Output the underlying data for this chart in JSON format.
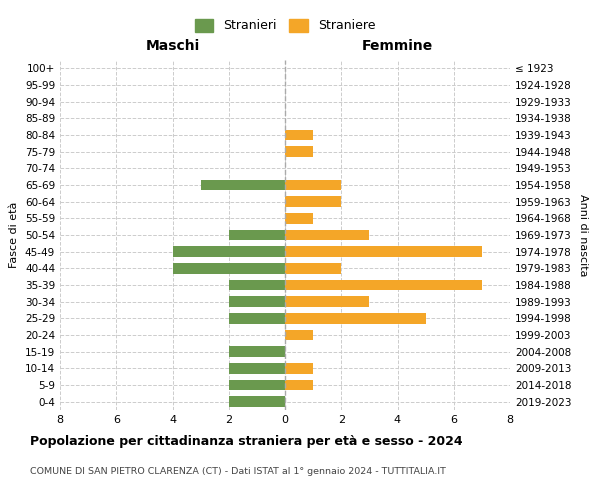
{
  "age_groups": [
    "100+",
    "95-99",
    "90-94",
    "85-89",
    "80-84",
    "75-79",
    "70-74",
    "65-69",
    "60-64",
    "55-59",
    "50-54",
    "45-49",
    "40-44",
    "35-39",
    "30-34",
    "25-29",
    "20-24",
    "15-19",
    "10-14",
    "5-9",
    "0-4"
  ],
  "birth_years": [
    "≤ 1923",
    "1924-1928",
    "1929-1933",
    "1934-1938",
    "1939-1943",
    "1944-1948",
    "1949-1953",
    "1954-1958",
    "1959-1963",
    "1964-1968",
    "1969-1973",
    "1974-1978",
    "1979-1983",
    "1984-1988",
    "1989-1993",
    "1994-1998",
    "1999-2003",
    "2004-2008",
    "2009-2013",
    "2014-2018",
    "2019-2023"
  ],
  "maschi": [
    0,
    0,
    0,
    0,
    0,
    0,
    0,
    3,
    0,
    0,
    2,
    4,
    4,
    2,
    2,
    2,
    0,
    2,
    2,
    2,
    2
  ],
  "femmine": [
    0,
    0,
    0,
    0,
    1,
    1,
    0,
    2,
    2,
    1,
    3,
    7,
    2,
    7,
    3,
    5,
    1,
    0,
    1,
    1,
    0
  ],
  "color_maschi": "#6a994e",
  "color_femmine": "#f4a628",
  "bg_color": "#ffffff",
  "grid_color": "#cccccc",
  "title": "Popolazione per cittadinanza straniera per età e sesso - 2024",
  "subtitle": "COMUNE DI SAN PIETRO CLARENZA (CT) - Dati ISTAT al 1° gennaio 2024 - TUTTITALIA.IT",
  "label_maschi": "Stranieri",
  "label_femmine": "Straniere",
  "label_left": "Maschi",
  "label_right": "Femmine",
  "ylabel": "Fasce di età",
  "ylabel_right": "Anni di nascita",
  "xlim": 8
}
